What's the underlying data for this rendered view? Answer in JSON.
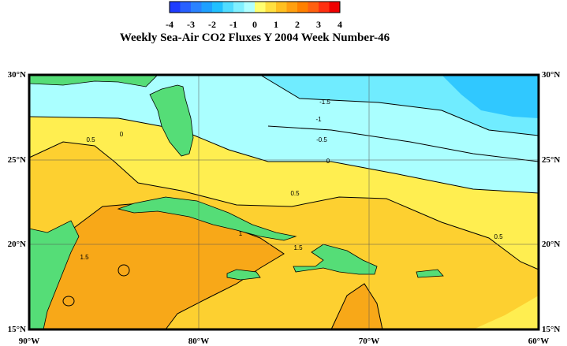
{
  "title": "Weekly Sea-Air CO2 Fluxes Y 2004 Week Number-46",
  "colorbar": {
    "labels": [
      -4,
      -3,
      -2,
      -1,
      0,
      1,
      2,
      3,
      4
    ]
  },
  "axes": {
    "lat_labels": [
      "30°N",
      "25°N",
      "20°N",
      "15°N"
    ],
    "lon_labels": [
      "90°W",
      "80°W",
      "70°W",
      "60°W"
    ]
  },
  "contour_labels": [
    "-1.5",
    "-1",
    "-0.5",
    "0",
    "0.5",
    "0",
    "0.5",
    "0.5",
    "1.5",
    "1.5",
    "1"
  ]
}
